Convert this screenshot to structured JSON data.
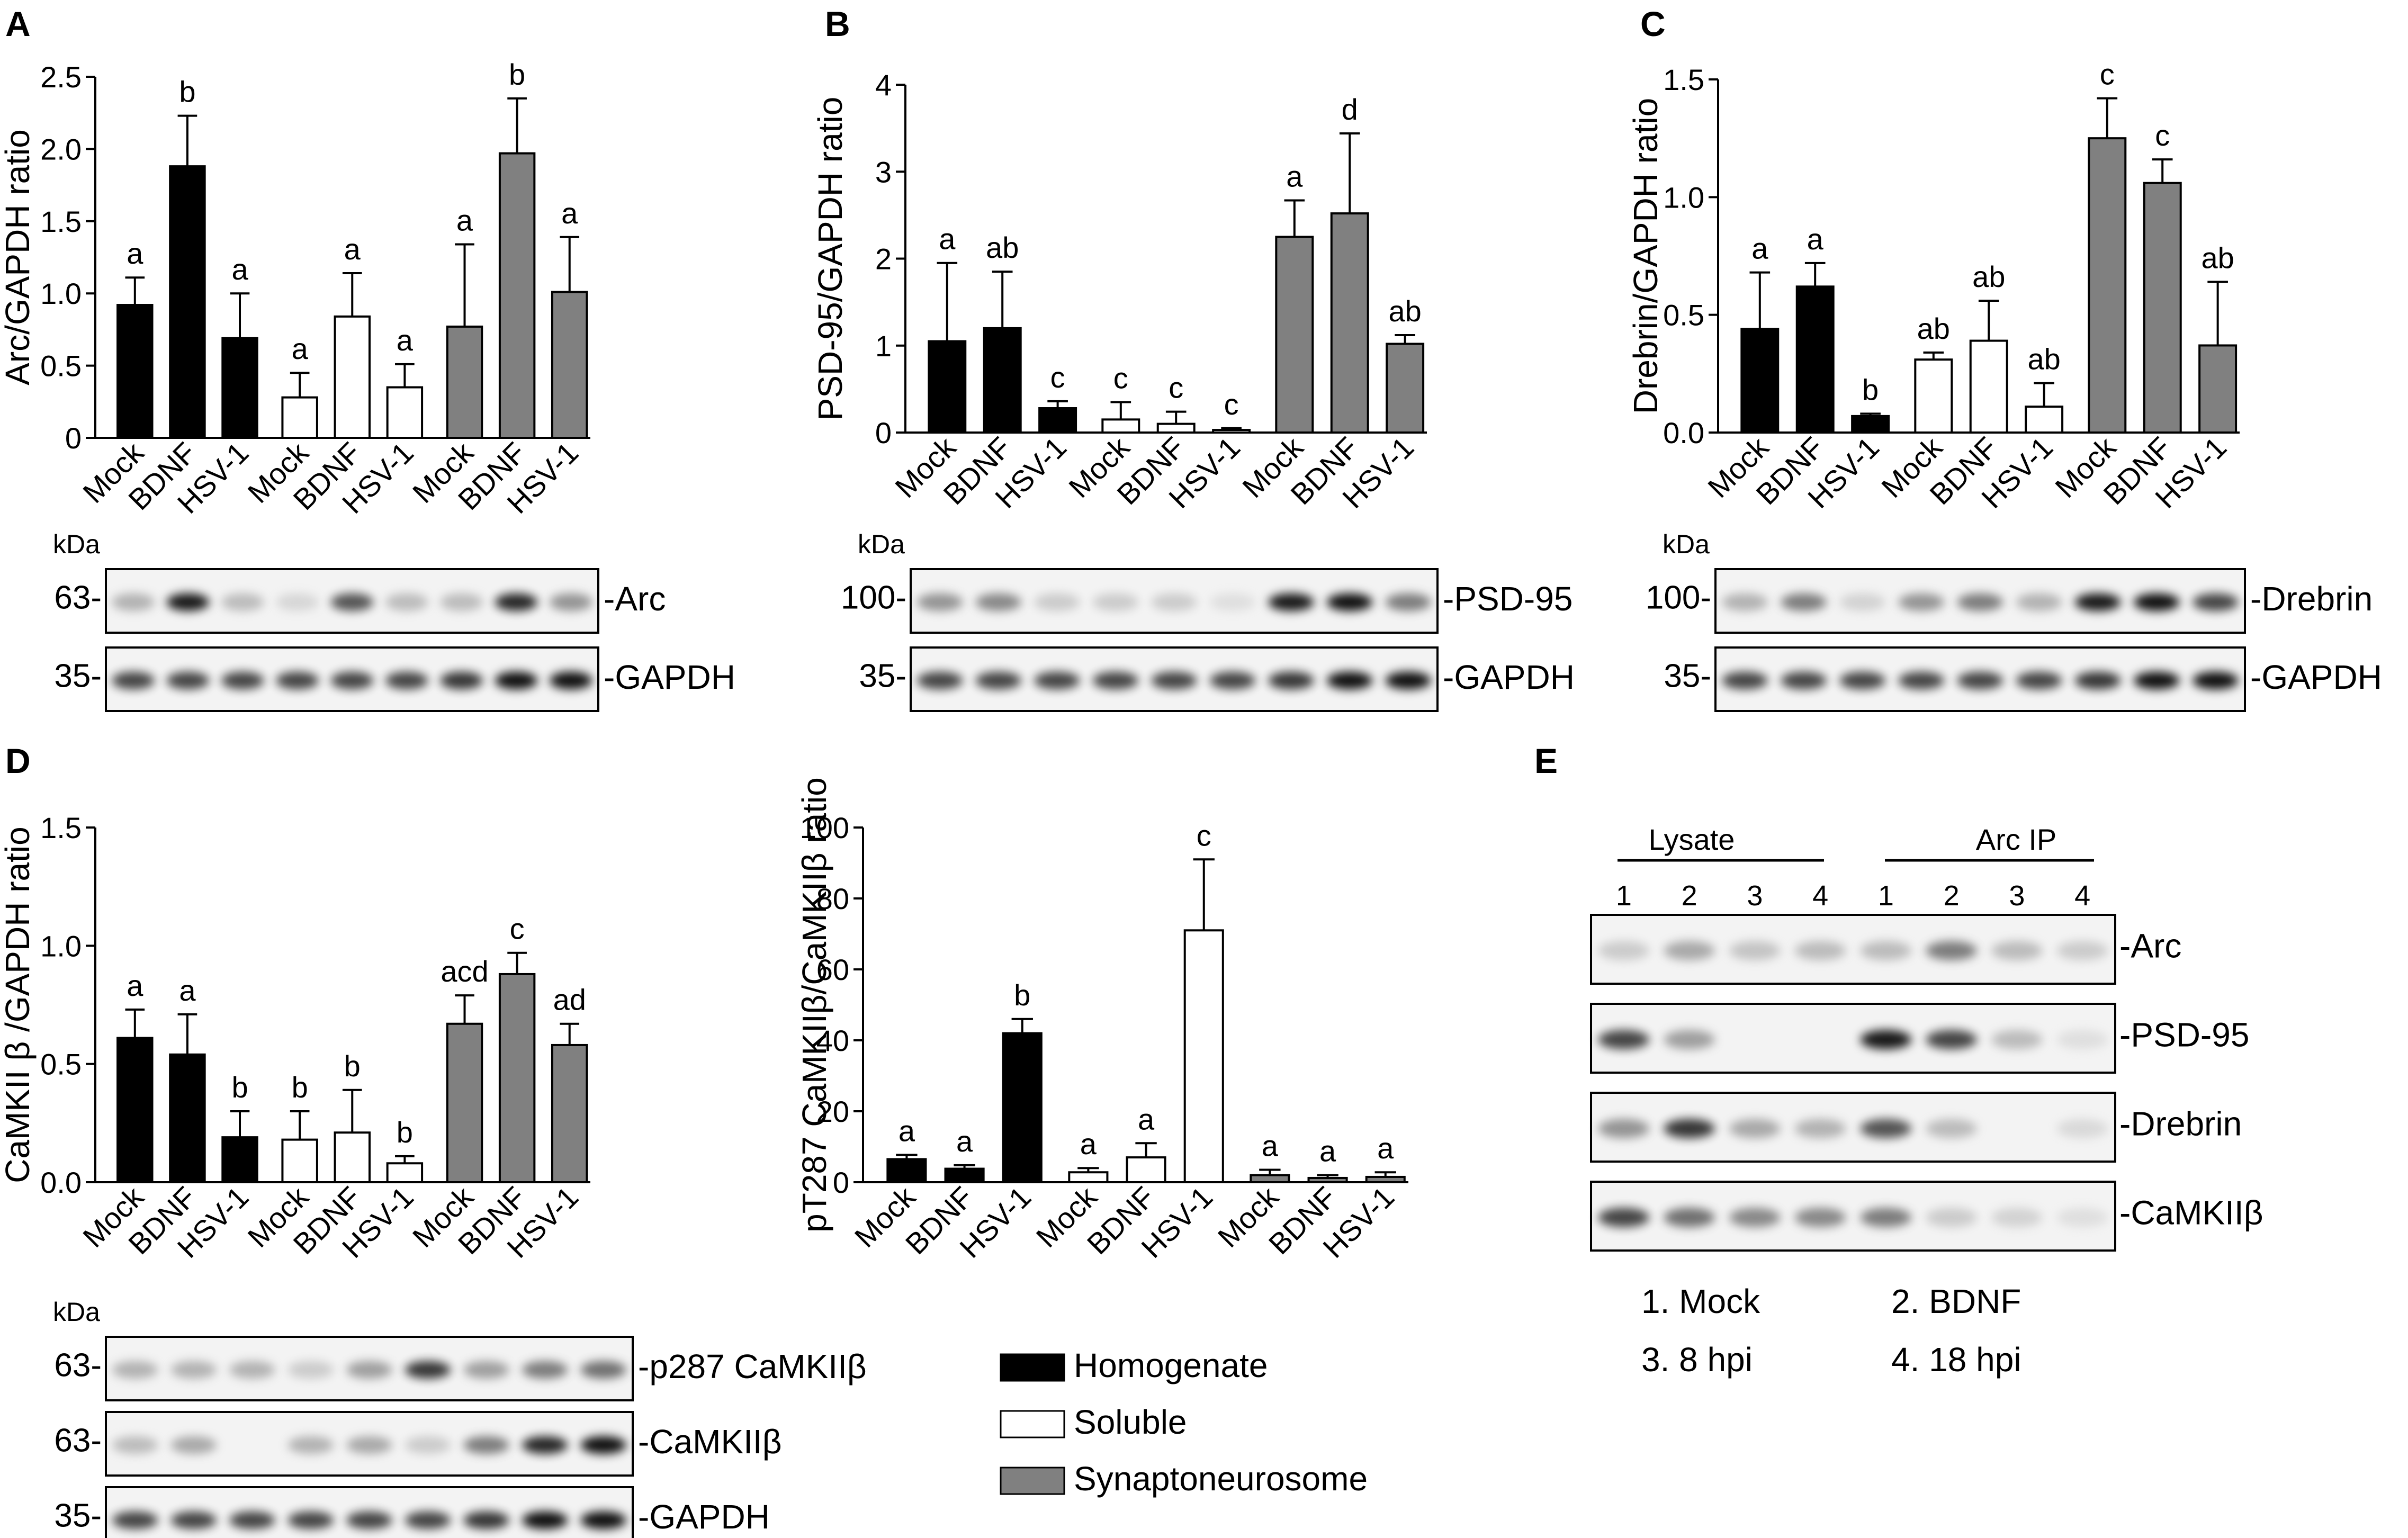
{
  "chart_data": [
    {
      "panel": "A",
      "type": "bar",
      "ylabel": "Arc/GAPDH ratio",
      "ylim": [
        0,
        2.5
      ],
      "yticks": [
        "0",
        "0.5",
        "1.0",
        "1.5",
        "2.0",
        "2.5"
      ],
      "ytick_values": [
        0,
        0.5,
        1.0,
        1.5,
        2.0,
        2.5
      ],
      "groups": [
        {
          "series": "Homogenate",
          "bars": [
            {
              "category": "Mock",
              "value": 0.92,
              "error": 0.19,
              "letter": "a"
            },
            {
              "category": "BDNF",
              "value": 1.88,
              "error": 0.35,
              "letter": "b"
            },
            {
              "category": "HSV-1",
              "value": 0.69,
              "error": 0.31,
              "letter": "a"
            }
          ]
        },
        {
          "series": "Soluble",
          "bars": [
            {
              "category": "Mock",
              "value": 0.28,
              "error": 0.17,
              "letter": "a"
            },
            {
              "category": "BDNF",
              "value": 0.84,
              "error": 0.3,
              "letter": "a"
            },
            {
              "category": "HSV-1",
              "value": 0.35,
              "error": 0.16,
              "letter": "a"
            }
          ]
        },
        {
          "series": "Synaptoneurosome",
          "bars": [
            {
              "category": "Mock",
              "value": 0.77,
              "error": 0.57,
              "letter": "a"
            },
            {
              "category": "BDNF",
              "value": 1.97,
              "error": 0.38,
              "letter": "b"
            },
            {
              "category": "HSV-1",
              "value": 1.01,
              "error": 0.38,
              "letter": "a"
            }
          ]
        }
      ]
    },
    {
      "panel": "B",
      "type": "bar",
      "ylabel": "PSD-95/GAPDH ratio",
      "ylim": [
        0,
        4
      ],
      "yticks": [
        "0",
        "1",
        "2",
        "3",
        "4"
      ],
      "ytick_values": [
        0,
        1,
        2,
        3,
        4
      ],
      "groups": [
        {
          "series": "Homogenate",
          "bars": [
            {
              "category": "Mock",
              "value": 1.05,
              "error": 0.9,
              "letter": "a"
            },
            {
              "category": "BDNF",
              "value": 1.2,
              "error": 0.65,
              "letter": "ab"
            },
            {
              "category": "HSV-1",
              "value": 0.28,
              "error": 0.08,
              "letter": "c"
            }
          ]
        },
        {
          "series": "Soluble",
          "bars": [
            {
              "category": "Mock",
              "value": 0.15,
              "error": 0.2,
              "letter": "c"
            },
            {
              "category": "BDNF",
              "value": 0.1,
              "error": 0.14,
              "letter": "c"
            },
            {
              "category": "HSV-1",
              "value": 0.03,
              "error": 0.02,
              "letter": "c"
            }
          ]
        },
        {
          "series": "Synaptoneurosome",
          "bars": [
            {
              "category": "Mock",
              "value": 2.25,
              "error": 0.42,
              "letter": "a"
            },
            {
              "category": "BDNF",
              "value": 2.52,
              "error": 0.92,
              "letter": "d"
            },
            {
              "category": "HSV-1",
              "value": 1.02,
              "error": 0.1,
              "letter": "ab"
            }
          ]
        }
      ]
    },
    {
      "panel": "C",
      "type": "bar",
      "ylabel": "Drebrin/GAPDH ratio",
      "ylim": [
        0,
        1.5
      ],
      "yticks": [
        "0.0",
        "0.5",
        "1.0",
        "1.5"
      ],
      "ytick_values": [
        0,
        0.5,
        1.0,
        1.5
      ],
      "groups": [
        {
          "series": "Homogenate",
          "bars": [
            {
              "category": "Mock",
              "value": 0.44,
              "error": 0.24,
              "letter": "a"
            },
            {
              "category": "BDNF",
              "value": 0.62,
              "error": 0.1,
              "letter": "a"
            },
            {
              "category": "HSV-1",
              "value": 0.07,
              "error": 0.01,
              "letter": "b"
            }
          ]
        },
        {
          "series": "Soluble",
          "bars": [
            {
              "category": "Mock",
              "value": 0.31,
              "error": 0.03,
              "letter": "ab"
            },
            {
              "category": "BDNF",
              "value": 0.39,
              "error": 0.17,
              "letter": "ab"
            },
            {
              "category": "HSV-1",
              "value": 0.11,
              "error": 0.1,
              "letter": "ab"
            }
          ]
        },
        {
          "series": "Synaptoneurosome",
          "bars": [
            {
              "category": "Mock",
              "value": 1.25,
              "error": 0.17,
              "letter": "c"
            },
            {
              "category": "BDNF",
              "value": 1.06,
              "error": 0.1,
              "letter": "c"
            },
            {
              "category": "HSV-1",
              "value": 0.37,
              "error": 0.27,
              "letter": "ab"
            }
          ]
        }
      ]
    },
    {
      "panel": "D",
      "type": "bar",
      "ylabel": "CaMKII β /GAPDH ratio",
      "ylim": [
        0,
        1.5
      ],
      "yticks": [
        "0.0",
        "0.5",
        "1.0",
        "1.5"
      ],
      "ytick_values": [
        0,
        0.5,
        1.0,
        1.5
      ],
      "groups": [
        {
          "series": "Homogenate",
          "bars": [
            {
              "category": "Mock",
              "value": 0.61,
              "error": 0.12,
              "letter": "a"
            },
            {
              "category": "BDNF",
              "value": 0.54,
              "error": 0.17,
              "letter": "a"
            },
            {
              "category": "HSV-1",
              "value": 0.19,
              "error": 0.11,
              "letter": "b"
            }
          ]
        },
        {
          "series": "Soluble",
          "bars": [
            {
              "category": "Mock",
              "value": 0.18,
              "error": 0.12,
              "letter": "b"
            },
            {
              "category": "BDNF",
              "value": 0.21,
              "error": 0.18,
              "letter": "b"
            },
            {
              "category": "HSV-1",
              "value": 0.08,
              "error": 0.03,
              "letter": "b"
            }
          ]
        },
        {
          "series": "Synaptoneurosome",
          "bars": [
            {
              "category": "Mock",
              "value": 0.67,
              "error": 0.12,
              "letter": "acd"
            },
            {
              "category": "BDNF",
              "value": 0.88,
              "error": 0.09,
              "letter": "c"
            },
            {
              "category": "HSV-1",
              "value": 0.58,
              "error": 0.09,
              "letter": "ad"
            }
          ]
        }
      ]
    },
    {
      "panel": "D2",
      "type": "bar",
      "ylabel": "pT287 CaMKIIβ/CaMKIIβ ratio",
      "ylim": [
        0,
        100
      ],
      "yticks": [
        "0",
        "20",
        "40",
        "60",
        "80",
        "100"
      ],
      "ytick_values": [
        0,
        20,
        40,
        60,
        80,
        100
      ],
      "groups": [
        {
          "series": "Homogenate",
          "bars": [
            {
              "category": "Mock",
              "value": 6.5,
              "error": 1.2,
              "letter": "a"
            },
            {
              "category": "BDNF",
              "value": 3.8,
              "error": 1.0,
              "letter": "a"
            },
            {
              "category": "HSV-1",
              "value": 42,
              "error": 4.0,
              "letter": "b"
            }
          ]
        },
        {
          "series": "Soluble",
          "bars": [
            {
              "category": "Mock",
              "value": 2.8,
              "error": 1.2,
              "letter": "a"
            },
            {
              "category": "BDNF",
              "value": 7.0,
              "error": 4.0,
              "letter": "a"
            },
            {
              "category": "HSV-1",
              "value": 71,
              "error": 20,
              "letter": "c"
            }
          ]
        },
        {
          "series": "Synaptoneurosome",
          "bars": [
            {
              "category": "Mock",
              "value": 2.0,
              "error": 1.5,
              "letter": "a"
            },
            {
              "category": "BDNF",
              "value": 1.2,
              "error": 0.8,
              "letter": "a"
            },
            {
              "category": "HSV-1",
              "value": 1.5,
              "error": 1.3,
              "letter": "a"
            }
          ]
        }
      ]
    }
  ],
  "panel_letters": {
    "A": "A",
    "B": "B",
    "C": "C",
    "D": "D",
    "E": "E"
  },
  "colors": {
    "Homogenate": "#000000",
    "Soluble": "#ffffff",
    "Synaptoneurosome": "#808080"
  },
  "legend": [
    {
      "label": "Homogenate",
      "color": "#000000"
    },
    {
      "label": "Soluble",
      "color": "#ffffff"
    },
    {
      "label": "Synaptoneurosome",
      "color": "#808080"
    }
  ],
  "blots": {
    "kda": "kDa",
    "A": [
      {
        "marker": "63-",
        "label": "-Arc",
        "intensities": [
          0.35,
          0.95,
          0.3,
          0.12,
          0.75,
          0.3,
          0.3,
          0.9,
          0.5
        ]
      },
      {
        "marker": "35-",
        "label": "-GAPDH",
        "intensities": [
          0.8,
          0.8,
          0.8,
          0.8,
          0.8,
          0.8,
          0.85,
          1,
          1
        ]
      }
    ],
    "B": [
      {
        "marker": "100-",
        "label": "-PSD-95",
        "intensities": [
          0.5,
          0.55,
          0.2,
          0.2,
          0.2,
          0.05,
          0.95,
          1,
          0.6
        ]
      },
      {
        "marker": "35-",
        "label": "-GAPDH",
        "intensities": [
          0.8,
          0.8,
          0.8,
          0.8,
          0.8,
          0.8,
          0.85,
          1,
          1
        ]
      }
    ],
    "C": [
      {
        "marker": "100-",
        "label": "-Drebrin",
        "intensities": [
          0.35,
          0.6,
          0.15,
          0.5,
          0.6,
          0.35,
          0.95,
          1,
          0.8
        ]
      },
      {
        "marker": "35-",
        "label": "-GAPDH",
        "intensities": [
          0.8,
          0.8,
          0.8,
          0.8,
          0.8,
          0.8,
          0.85,
          1,
          1
        ]
      }
    ],
    "D": [
      {
        "marker": "63-",
        "label": "-p287 CaMKIIβ",
        "intensities": [
          0.35,
          0.35,
          0.35,
          0.2,
          0.45,
          0.85,
          0.45,
          0.6,
          0.65
        ]
      },
      {
        "marker": "63-",
        "label": "-CaMKIIβ",
        "intensities": [
          0.3,
          0.4,
          0.0,
          0.35,
          0.4,
          0.2,
          0.6,
          0.9,
          1
        ]
      },
      {
        "marker": "35-",
        "label": "-GAPDH",
        "intensities": [
          0.8,
          0.8,
          0.8,
          0.8,
          0.8,
          0.8,
          0.85,
          1,
          1
        ]
      }
    ],
    "E": {
      "lysate_label": "Lysate",
      "ip_label": "Arc IP",
      "lane_numbers": [
        "1",
        "2",
        "3",
        "4",
        "1",
        "2",
        "3",
        "4"
      ],
      "rows": [
        {
          "label": "-Arc",
          "intensities": [
            0.2,
            0.4,
            0.25,
            0.3,
            0.3,
            0.6,
            0.3,
            0.2
          ]
        },
        {
          "label": "-PSD-95",
          "intensities": [
            0.8,
            0.45,
            0,
            0,
            0.95,
            0.8,
            0.3,
            0.05
          ]
        },
        {
          "label": "-Drebrin",
          "intensities": [
            0.5,
            0.85,
            0.4,
            0.35,
            0.75,
            0.3,
            0,
            0.1
          ]
        },
        {
          "label": "-CaMKIIβ",
          "intensities": [
            0.8,
            0.65,
            0.55,
            0.55,
            0.6,
            0.2,
            0.15,
            0.05
          ]
        }
      ],
      "key": [
        "1. Mock",
        "2. BDNF",
        "3. 8 hpi",
        "4. 18 hpi"
      ]
    }
  }
}
